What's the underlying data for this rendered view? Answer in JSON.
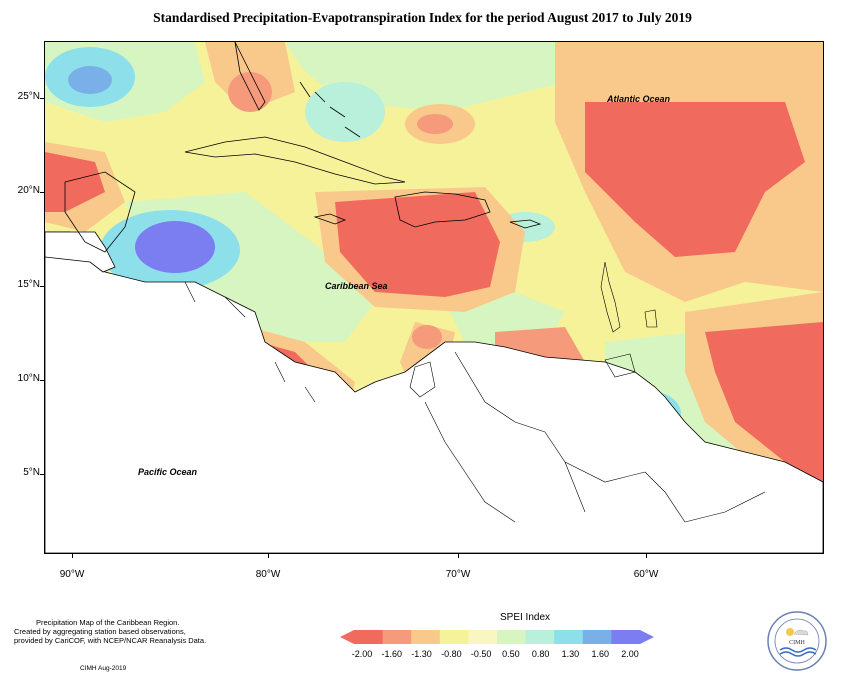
{
  "title": "Standardised Precipitation-Evapotranspiration Index for the period August 2017 to July 2019",
  "map": {
    "latitude_labels": [
      "25°N",
      "20°N",
      "15°N",
      "10°N",
      "5°N"
    ],
    "longitude_labels": [
      "90°W",
      "80°W",
      "70°W",
      "60°W"
    ],
    "ocean_labels": {
      "atlantic": "Atlantic Ocean",
      "caribbean": "Caribbean Sea",
      "pacific": "Pacific Ocean"
    }
  },
  "legend": {
    "title": "SPEI Index",
    "values": [
      "-2.00",
      "-1.60",
      "-1.30",
      "-0.80",
      "-0.50",
      "0.50",
      "0.80",
      "1.30",
      "1.60",
      "2.00"
    ],
    "colors": [
      "#f06b5e",
      "#f59a7a",
      "#f9c98c",
      "#f6f29a",
      "#f9f6c2",
      "#d6f5c0",
      "#b8f0dc",
      "#8de0ea",
      "#7ab0e8",
      "#7a7ef0"
    ]
  },
  "notes": {
    "line1": "Precipitation Map of the Caribbean Region.",
    "line2": "Created by aggregating station based observations,",
    "line3": "provided by CariCOF, with NCEP/NCAR Reanalysis Data.",
    "credit": "CIMH Aug-2019"
  },
  "logo": {
    "label": "CIMH"
  }
}
